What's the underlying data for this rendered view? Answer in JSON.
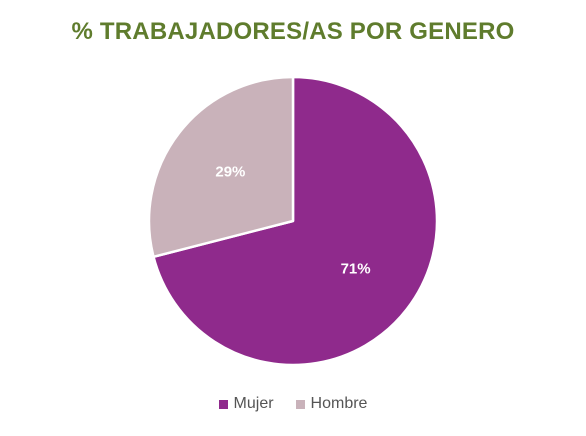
{
  "chart_data": {
    "type": "pie",
    "title": "% TRABAJADORES/AS POR GENERO",
    "slices": [
      {
        "label": "Mujer",
        "value": 71,
        "display": "71%",
        "color": "#8f2a8c"
      },
      {
        "label": "Hombre",
        "value": 29,
        "display": "29%",
        "color": "#c9b2ba"
      }
    ],
    "legend_position": "bottom",
    "title_color": "#5f7c2d"
  }
}
